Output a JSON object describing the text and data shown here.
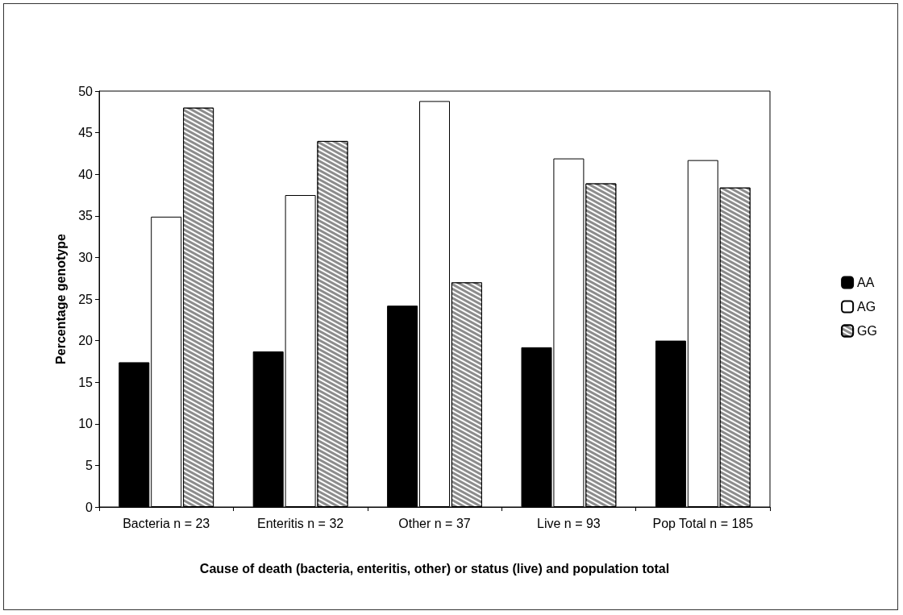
{
  "chart_data": {
    "type": "bar",
    "xlabel": "Cause of death (bacteria, enteritis, other) or status (live) and population total",
    "ylabel": "Percentage genotype",
    "categories": [
      "Bacteria n = 23",
      "Enteritis n = 32",
      "Other n = 37",
      "Live n = 93",
      "Pop Total n = 185"
    ],
    "series": [
      {
        "name": "AA",
        "color": "#000000",
        "values": [
          17.4,
          18.7,
          24.2,
          19.2,
          20.0
        ]
      },
      {
        "name": "AG",
        "color": "#ffffff",
        "values": [
          34.9,
          37.5,
          48.8,
          41.9,
          41.7
        ]
      },
      {
        "name": "GG",
        "color": "#8c8c8c",
        "values": [
          48.0,
          44.0,
          27.0,
          38.9,
          38.4
        ]
      }
    ],
    "ylim": [
      0,
      50
    ],
    "yticks": [
      0,
      5,
      10,
      15,
      20,
      25,
      30,
      35,
      40,
      45,
      50
    ],
    "grid": false,
    "legend": "right"
  }
}
